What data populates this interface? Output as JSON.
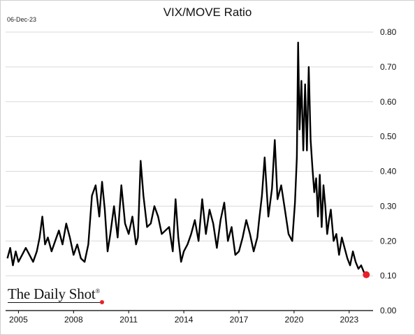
{
  "header": {
    "date_stamp": "06-Dec-23",
    "title": "VIX/MOVE Ratio"
  },
  "branding": {
    "logo_text": "The Daily Shot",
    "logo_mark": "®"
  },
  "chart_data": {
    "type": "line",
    "title": "VIX/MOVE Ratio",
    "xlabel": "",
    "ylabel": "",
    "xlim": [
      2004.3,
      2024.3
    ],
    "ylim": [
      0.0,
      0.8
    ],
    "y_ticks": [
      "0.00",
      "0.10",
      "0.20",
      "0.30",
      "0.40",
      "0.50",
      "0.60",
      "0.70",
      "0.80"
    ],
    "x_ticks": [
      "2005",
      "2008",
      "2011",
      "2014",
      "2017",
      "2020",
      "2023"
    ],
    "grid": "horizontal",
    "y_axis_side": "right",
    "line_color": "#000000",
    "marker_color": "#e8202a",
    "series": [
      {
        "x": [
          2004.4,
          2004.55,
          2004.7,
          2004.85,
          2005.0,
          2005.2,
          2005.4,
          2005.6,
          2005.8,
          2006.0,
          2006.15,
          2006.3,
          2006.45,
          2006.6,
          2006.8,
          2007.0,
          2007.2,
          2007.4,
          2007.6,
          2007.8,
          2008.0,
          2008.2,
          2008.4,
          2008.6,
          2008.8,
          2009.0,
          2009.2,
          2009.4,
          2009.55,
          2009.7,
          2009.85,
          2010.0,
          2010.2,
          2010.4,
          2010.6,
          2010.8,
          2011.0,
          2011.2,
          2011.4,
          2011.5,
          2011.65,
          2011.8,
          2012.0,
          2012.2,
          2012.4,
          2012.6,
          2012.8,
          2013.0,
          2013.2,
          2013.4,
          2013.55,
          2013.7,
          2013.85,
          2014.0,
          2014.2,
          2014.4,
          2014.6,
          2014.8,
          2015.0,
          2015.2,
          2015.4,
          2015.6,
          2015.8,
          2016.0,
          2016.2,
          2016.4,
          2016.6,
          2016.8,
          2017.0,
          2017.2,
          2017.4,
          2017.6,
          2017.8,
          2018.0,
          2018.1,
          2018.25,
          2018.4,
          2018.6,
          2018.8,
          2018.95,
          2019.1,
          2019.3,
          2019.5,
          2019.7,
          2019.9,
          2020.05,
          2020.15,
          2020.22,
          2020.3,
          2020.4,
          2020.5,
          2020.6,
          2020.7,
          2020.8,
          2020.9,
          2021.0,
          2021.1,
          2021.2,
          2021.3,
          2021.4,
          2021.5,
          2021.6,
          2021.7,
          2021.8,
          2021.9,
          2022.0,
          2022.15,
          2022.3,
          2022.45,
          2022.6,
          2022.75,
          2022.9,
          2023.05,
          2023.2,
          2023.35,
          2023.5,
          2023.65,
          2023.8,
          2023.93
        ],
        "y": [
          0.15,
          0.18,
          0.13,
          0.17,
          0.14,
          0.16,
          0.18,
          0.16,
          0.14,
          0.17,
          0.21,
          0.27,
          0.19,
          0.21,
          0.17,
          0.2,
          0.23,
          0.19,
          0.25,
          0.21,
          0.16,
          0.19,
          0.15,
          0.14,
          0.19,
          0.33,
          0.36,
          0.27,
          0.37,
          0.29,
          0.17,
          0.22,
          0.3,
          0.21,
          0.36,
          0.25,
          0.22,
          0.27,
          0.19,
          0.21,
          0.43,
          0.33,
          0.24,
          0.25,
          0.3,
          0.27,
          0.22,
          0.23,
          0.24,
          0.17,
          0.32,
          0.21,
          0.14,
          0.17,
          0.19,
          0.22,
          0.26,
          0.2,
          0.32,
          0.22,
          0.29,
          0.25,
          0.18,
          0.26,
          0.31,
          0.2,
          0.24,
          0.16,
          0.17,
          0.21,
          0.26,
          0.22,
          0.17,
          0.21,
          0.26,
          0.33,
          0.44,
          0.27,
          0.35,
          0.49,
          0.32,
          0.36,
          0.29,
          0.22,
          0.2,
          0.31,
          0.44,
          0.77,
          0.52,
          0.66,
          0.46,
          0.65,
          0.46,
          0.7,
          0.49,
          0.41,
          0.34,
          0.38,
          0.27,
          0.39,
          0.24,
          0.36,
          0.3,
          0.22,
          0.26,
          0.29,
          0.2,
          0.22,
          0.16,
          0.21,
          0.18,
          0.15,
          0.13,
          0.17,
          0.14,
          0.12,
          0.13,
          0.11,
          0.103
        ]
      }
    ],
    "last_point_marker": true
  }
}
